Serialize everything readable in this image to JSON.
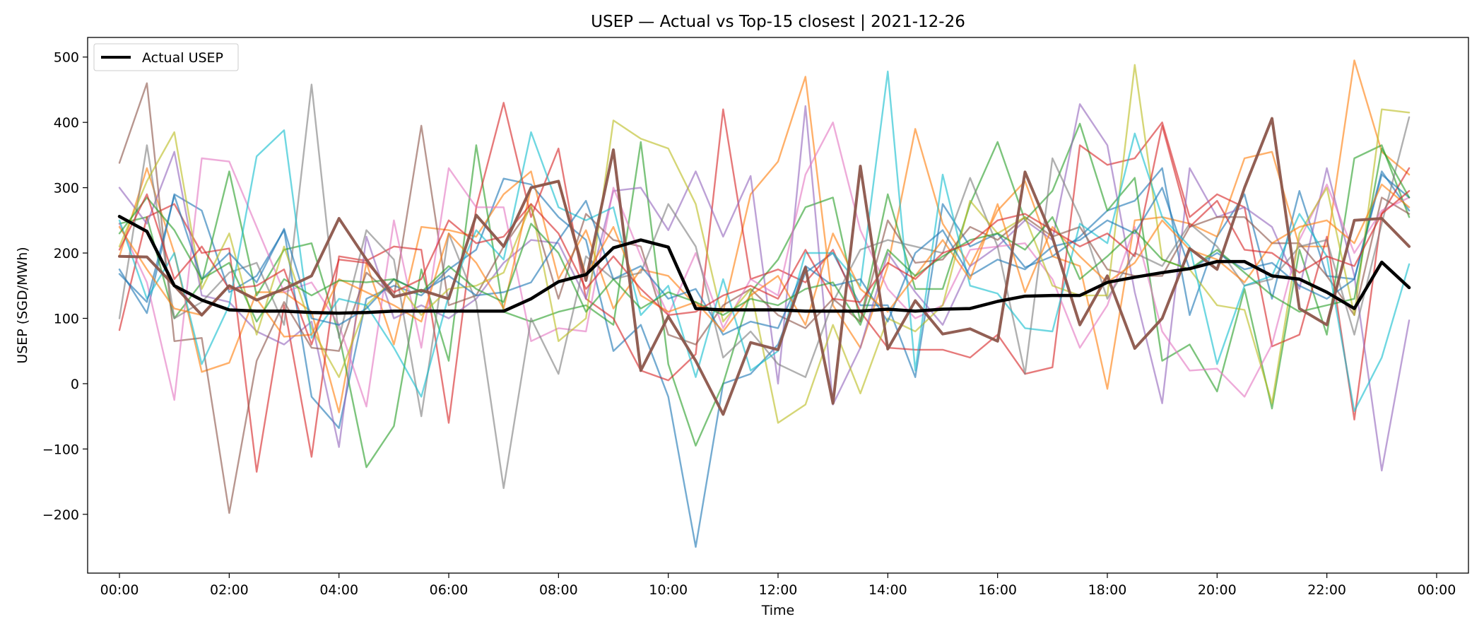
{
  "chart_data": {
    "type": "line",
    "title": "USEP — Actual vs Top-15 closest | 2021-12-26",
    "xlabel": "Time",
    "ylabel": "USEP (SGD/MWh)",
    "xlim": [
      -0.58,
      24.58
    ],
    "ylim": [
      -290,
      530
    ],
    "x_tick_values": [
      0,
      2,
      4,
      6,
      8,
      10,
      12,
      14,
      16,
      18,
      20,
      22,
      24
    ],
    "x_tick_labels": [
      "00:00",
      "02:00",
      "04:00",
      "06:00",
      "08:00",
      "10:00",
      "12:00",
      "14:00",
      "16:00",
      "18:00",
      "20:00",
      "22:00",
      "00:00"
    ],
    "y_ticks": [
      -200,
      -100,
      0,
      100,
      200,
      300,
      400,
      500
    ],
    "y_tick_labels": [
      "−200",
      "−100",
      "0",
      "100",
      "200",
      "300",
      "400",
      "500"
    ],
    "legend": {
      "placement": "top-left",
      "entries": [
        "Actual USEP"
      ]
    },
    "grid": false,
    "x": [
      0,
      0.5,
      1,
      1.5,
      2,
      2.5,
      3,
      3.5,
      4,
      4.5,
      5,
      5.5,
      6,
      6.5,
      7,
      7.5,
      8,
      8.5,
      9,
      9.5,
      10,
      10.5,
      11,
      11.5,
      12,
      12.5,
      13,
      13.5,
      14,
      14.5,
      15,
      15.5,
      16,
      16.5,
      17,
      17.5,
      18,
      18.5,
      19,
      19.5,
      20,
      20.5,
      21,
      21.5,
      22,
      22.5,
      23,
      23.5
    ],
    "series": [
      {
        "name": "Actual USEP",
        "color": "#000000",
        "values": [
          256,
          233,
          150,
          128,
          113,
          111,
          111,
          109,
          108,
          109,
          111,
          111,
          111,
          111,
          111,
          130,
          156,
          167,
          208,
          220,
          209,
          115,
          113,
          113,
          113,
          111,
          111,
          111,
          114,
          111,
          114,
          115,
          126,
          134,
          135,
          135,
          155,
          163,
          170,
          176,
          187,
          187,
          165,
          160,
          140,
          115,
          186,
          147
        ]
      },
      {
        "color": "#1f77b4",
        "values": [
          175,
          108,
          290,
          265,
          140,
          165,
          235,
          -20,
          -68,
          130,
          150,
          135,
          175,
          205,
          314,
          305,
          255,
          220,
          50,
          90,
          -20,
          -250,
          0,
          15,
          60,
          170,
          200,
          120,
          120,
          10,
          275,
          210,
          230,
          178,
          195,
          225,
          265,
          280,
          330,
          105,
          225,
          290,
          130,
          295,
          165,
          160,
          325,
          265
        ]
      },
      {
        "color": "#ff7f0e",
        "values": [
          195,
          330,
          200,
          18,
          32,
          140,
          140,
          110,
          -44,
          185,
          60,
          240,
          235,
          225,
          290,
          325,
          160,
          235,
          115,
          175,
          165,
          120,
          110,
          290,
          340,
          470,
          120,
          55,
          180,
          390,
          245,
          180,
          265,
          310,
          195,
          180,
          -8,
          250,
          255,
          245,
          225,
          345,
          355,
          210,
          210,
          495,
          355,
          320
        ]
      },
      {
        "color": "#2ca02c",
        "values": [
          245,
          255,
          100,
          155,
          325,
          135,
          205,
          215,
          75,
          -128,
          -65,
          175,
          35,
          365,
          110,
          95,
          110,
          120,
          90,
          370,
          30,
          -95,
          0,
          140,
          190,
          270,
          285,
          95,
          290,
          145,
          145,
          275,
          370,
          250,
          295,
          398,
          265,
          315,
          35,
          60,
          -12,
          145,
          -38,
          205,
          75,
          345,
          365,
          255
        ]
      },
      {
        "color": "#d62728",
        "values": [
          82,
          255,
          275,
          200,
          207,
          -135,
          120,
          -112,
          195,
          188,
          210,
          205,
          -60,
          270,
          430,
          255,
          360,
          130,
          100,
          20,
          5,
          45,
          420,
          160,
          175,
          155,
          205,
          110,
          55,
          52,
          52,
          40,
          75,
          15,
          25,
          365,
          335,
          345,
          400,
          255,
          290,
          270,
          57,
          75,
          225,
          -55,
          260,
          330
        ]
      },
      {
        "color": "#9467bd",
        "values": [
          300,
          245,
          355,
          135,
          125,
          80,
          60,
          95,
          -97,
          225,
          100,
          120,
          100,
          130,
          185,
          220,
          215,
          130,
          295,
          300,
          235,
          325,
          225,
          318,
          0,
          425,
          -32,
          55,
          200,
          140,
          90,
          180,
          210,
          250,
          220,
          428,
          365,
          140,
          -30,
          330,
          255,
          270,
          240,
          145,
          330,
          165,
          -133,
          97
        ]
      },
      {
        "color": "#8c564b",
        "values": [
          338,
          460,
          65,
          70,
          -198,
          35,
          125,
          55,
          50,
          170,
          133,
          395,
          120,
          135,
          210,
          270,
          130,
          260,
          220,
          210,
          75,
          60,
          120,
          145,
          105,
          85,
          130,
          95,
          250,
          185,
          190,
          240,
          220,
          255,
          225,
          240,
          175,
          165,
          165,
          240,
          255,
          255,
          215,
          215,
          165,
          105,
          285,
          260
        ]
      },
      {
        "color": "#e377c2",
        "values": [
          245,
          155,
          -25,
          345,
          340,
          240,
          140,
          155,
          90,
          -35,
          250,
          55,
          330,
          270,
          270,
          65,
          85,
          80,
          300,
          195,
          105,
          200,
          85,
          160,
          135,
          320,
          400,
          235,
          145,
          100,
          120,
          205,
          210,
          215,
          160,
          55,
          120,
          240,
          80,
          20,
          23,
          -20,
          60,
          220,
          305,
          200,
          265,
          285
        ]
      },
      {
        "color": "#7f7f7f",
        "values": [
          100,
          365,
          100,
          125,
          170,
          185,
          90,
          458,
          70,
          235,
          190,
          -50,
          230,
          125,
          -160,
          100,
          15,
          195,
          160,
          170,
          275,
          210,
          40,
          80,
          30,
          10,
          125,
          205,
          220,
          210,
          200,
          315,
          210,
          15,
          345,
          255,
          130,
          200,
          180,
          245,
          210,
          150,
          160,
          210,
          220,
          75,
          245,
          408
        ]
      },
      {
        "color": "#bcbd22",
        "values": [
          210,
          310,
          385,
          145,
          230,
          75,
          210,
          85,
          10,
          120,
          160,
          105,
          145,
          150,
          170,
          275,
          65,
          100,
          403,
          375,
          360,
          275,
          95,
          145,
          -60,
          -32,
          90,
          -15,
          100,
          80,
          120,
          280,
          230,
          255,
          150,
          135,
          135,
          488,
          190,
          175,
          120,
          113,
          -30,
          230,
          300,
          105,
          420,
          415
        ]
      },
      {
        "color": "#17becf",
        "values": [
          250,
          130,
          200,
          30,
          120,
          348,
          388,
          70,
          130,
          120,
          55,
          -20,
          135,
          235,
          190,
          385,
          270,
          250,
          270,
          105,
          150,
          10,
          160,
          20,
          50,
          200,
          200,
          150,
          478,
          20,
          320,
          150,
          138,
          85,
          80,
          245,
          215,
          383,
          255,
          210,
          30,
          150,
          165,
          260,
          195,
          -42,
          40,
          183
        ]
      },
      {
        "color": "#1f77b4",
        "values": [
          168,
          125,
          288,
          160,
          200,
          155,
          237,
          100,
          90,
          115,
          160,
          140,
          165,
          135,
          140,
          155,
          220,
          280,
          160,
          180,
          130,
          145,
          75,
          95,
          85,
          180,
          150,
          160,
          95,
          200,
          235,
          165,
          190,
          175,
          210,
          220,
          250,
          230,
          300,
          175,
          200,
          175,
          185,
          150,
          130,
          160,
          320,
          285
        ]
      },
      {
        "color": "#ff7f0e",
        "values": [
          240,
          175,
          115,
          105,
          150,
          130,
          72,
          75,
          160,
          140,
          120,
          95,
          230,
          185,
          115,
          300,
          310,
          165,
          240,
          135,
          110,
          125,
          80,
          135,
          165,
          90,
          230,
          145,
          110,
          165,
          220,
          160,
          275,
          140,
          240,
          195,
          155,
          185,
          250,
          205,
          190,
          155,
          215,
          240,
          250,
          215,
          305,
          270
        ]
      },
      {
        "color": "#2ca02c",
        "values": [
          230,
          285,
          235,
          160,
          185,
          95,
          160,
          135,
          158,
          155,
          160,
          140,
          180,
          145,
          125,
          245,
          200,
          110,
          160,
          115,
          140,
          125,
          105,
          130,
          120,
          145,
          155,
          90,
          205,
          165,
          195,
          220,
          230,
          205,
          255,
          160,
          195,
          235,
          190,
          175,
          205,
          170,
          135,
          110,
          120,
          130,
          360,
          285
        ]
      },
      {
        "color": "#d62728",
        "values": [
          205,
          290,
          160,
          210,
          145,
          150,
          175,
          60,
          190,
          185,
          140,
          160,
          250,
          215,
          225,
          275,
          230,
          145,
          195,
          145,
          105,
          110,
          135,
          150,
          130,
          205,
          130,
          125,
          185,
          160,
          200,
          215,
          250,
          260,
          235,
          210,
          230,
          195,
          395,
          240,
          280,
          205,
          200,
          170,
          195,
          180,
          260,
          295
        ]
      },
      {
        "color": "#8c564b",
        "values": [
          195,
          194,
          150,
          105,
          150,
          128,
          145,
          165,
          253,
          190,
          133,
          143,
          130,
          258,
          210,
          300,
          310,
          158,
          358,
          20,
          103,
          35,
          -47,
          63,
          52,
          178,
          -30,
          333,
          53,
          127,
          76,
          84,
          65,
          324,
          224,
          90,
          165,
          54,
          100,
          207,
          175,
          300,
          406,
          115,
          90,
          250,
          253,
          210
        ],
        "emphasis": true
      }
    ]
  }
}
